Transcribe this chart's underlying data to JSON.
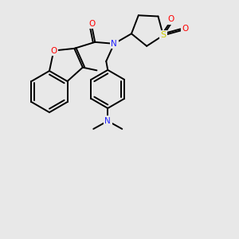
{
  "background_color": "#e8e8e8",
  "bond_color": "#000000",
  "figsize": [
    3.0,
    3.0
  ],
  "dpi": 100,
  "atom_colors": {
    "O": "#ff0000",
    "N": "#2222ff",
    "S": "#cccc00",
    "C": "#000000"
  },
  "lw": 1.4
}
